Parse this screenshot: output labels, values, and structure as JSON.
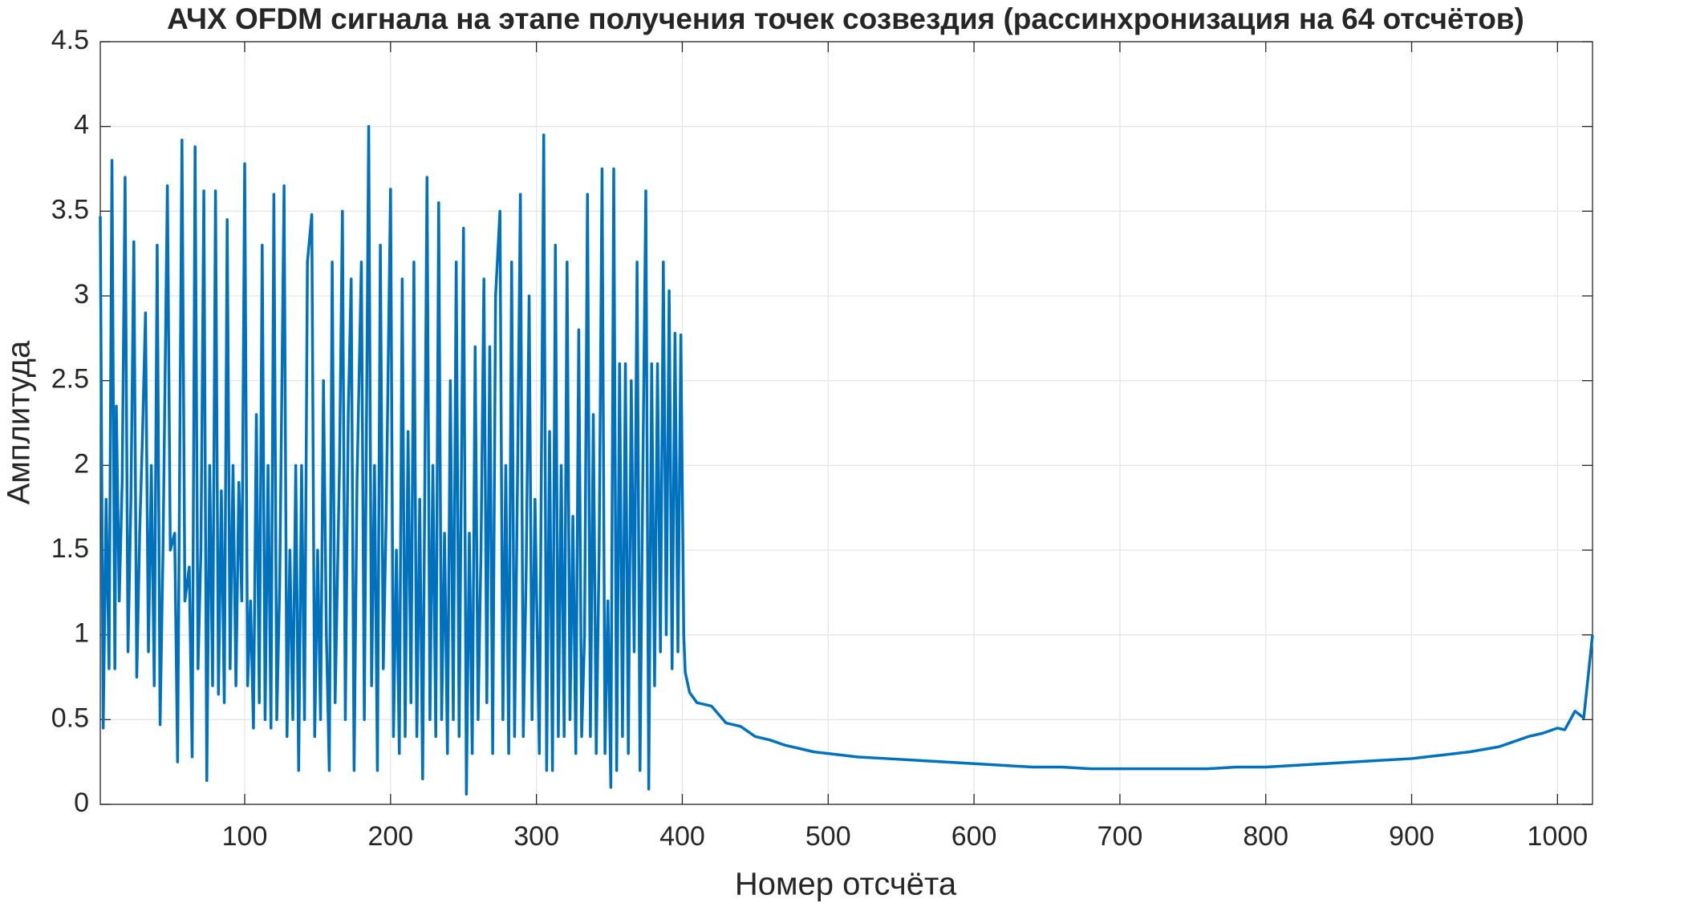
{
  "chart_data": {
    "type": "line",
    "title": "АЧХ OFDM сигнала на этапе получения точек созвездия (рассинхронизация на 64 отсчётов)",
    "xlabel": "Номер отсчёта",
    "ylabel": "Амплитуда",
    "xlim": [
      1,
      1024
    ],
    "ylim": [
      0,
      4.5
    ],
    "xticks": [
      100,
      200,
      300,
      400,
      500,
      600,
      700,
      800,
      900,
      1000
    ],
    "yticks": [
      0,
      0.5,
      1,
      1.5,
      2,
      2.5,
      3,
      3.5,
      4,
      4.5
    ],
    "grid": true,
    "series": [
      {
        "color": "#0072bd",
        "x": [
          1,
          3,
          5,
          7,
          9,
          11,
          12,
          14,
          16,
          18,
          20,
          22,
          24,
          26,
          28,
          30,
          32,
          34,
          36,
          38,
          40,
          42,
          44,
          47,
          49,
          52,
          54,
          57,
          59,
          62,
          64,
          66,
          68,
          70,
          72,
          74,
          76,
          78,
          80,
          82,
          84,
          86,
          88,
          90,
          92,
          94,
          96,
          98,
          100,
          102,
          104,
          106,
          108,
          110,
          112,
          114,
          116,
          118,
          120,
          122,
          124,
          127,
          129,
          131,
          133,
          135,
          137,
          139,
          141,
          143,
          146,
          148,
          150,
          152,
          154,
          156,
          158,
          160,
          162,
          165,
          167,
          169,
          171,
          173,
          175,
          177,
          180,
          182,
          185,
          187,
          189,
          191,
          193,
          195,
          197,
          200,
          202,
          204,
          206,
          208,
          210,
          212,
          214,
          216,
          218,
          220,
          222,
          225,
          227,
          229,
          231,
          233,
          235,
          237,
          239,
          241,
          243,
          245,
          247,
          250,
          252,
          254,
          256,
          258,
          260,
          262,
          264,
          266,
          268,
          270,
          272,
          275,
          277,
          279,
          281,
          283,
          285,
          287,
          289,
          291,
          293,
          295,
          297,
          299,
          302,
          305,
          307,
          309,
          311,
          313,
          315,
          317,
          319,
          321,
          323,
          325,
          327,
          329,
          331,
          333,
          335,
          337,
          339,
          341,
          343,
          345,
          347,
          349,
          351,
          353,
          355,
          357,
          359,
          361,
          363,
          365,
          367,
          369,
          371,
          373,
          375,
          377,
          379,
          381,
          383,
          385,
          387,
          389,
          391,
          393,
          395,
          397,
          399,
          401,
          402,
          405,
          410,
          420,
          430,
          440,
          450,
          460,
          470,
          480,
          490,
          500,
          520,
          540,
          560,
          580,
          600,
          620,
          640,
          660,
          680,
          700,
          720,
          740,
          760,
          780,
          800,
          820,
          840,
          860,
          880,
          900,
          920,
          940,
          960,
          970,
          980,
          990,
          1000,
          1005,
          1012,
          1018,
          1024
        ],
        "values": [
          3.47,
          0.45,
          1.8,
          0.8,
          3.8,
          0.8,
          2.35,
          1.2,
          1.9,
          3.7,
          0.9,
          1.8,
          3.32,
          0.75,
          1.6,
          2.2,
          2.9,
          0.9,
          2.0,
          0.7,
          3.3,
          0.47,
          1.5,
          3.65,
          1.5,
          1.6,
          0.25,
          3.92,
          1.2,
          1.4,
          0.28,
          3.88,
          0.8,
          1.5,
          3.62,
          0.14,
          2.0,
          0.7,
          3.62,
          0.65,
          1.85,
          0.6,
          3.45,
          0.8,
          2.0,
          0.7,
          1.9,
          1.2,
          3.78,
          0.7,
          1.2,
          0.45,
          2.3,
          0.6,
          3.3,
          0.5,
          2.0,
          0.45,
          3.6,
          0.5,
          1.3,
          3.65,
          0.4,
          1.5,
          0.5,
          2.0,
          0.2,
          2.0,
          0.5,
          3.2,
          3.48,
          0.4,
          1.5,
          0.5,
          2.5,
          1.0,
          0.2,
          3.2,
          0.6,
          2.0,
          3.5,
          0.5,
          2.3,
          3.1,
          0.2,
          1.9,
          3.2,
          0.5,
          4.0,
          0.7,
          2.0,
          0.2,
          3.3,
          0.8,
          1.7,
          3.63,
          0.4,
          1.5,
          0.3,
          3.1,
          0.4,
          2.2,
          0.6,
          3.2,
          0.4,
          1.8,
          0.15,
          3.7,
          0.5,
          2.0,
          0.4,
          3.55,
          0.5,
          1.6,
          0.3,
          2.5,
          0.5,
          3.2,
          0.4,
          3.4,
          0.06,
          1.6,
          0.3,
          2.7,
          0.5,
          1.5,
          3.1,
          0.6,
          2.7,
          0.3,
          3.0,
          3.5,
          0.5,
          2.0,
          0.3,
          3.2,
          0.4,
          1.9,
          3.6,
          0.4,
          1.4,
          3.0,
          0.5,
          1.8,
          0.3,
          3.95,
          0.2,
          2.2,
          0.2,
          3.3,
          0.4,
          2.0,
          0.4,
          3.2,
          0.5,
          1.7,
          0.3,
          2.8,
          0.4,
          1.0,
          3.6,
          0.4,
          2.3,
          0.3,
          1.5,
          3.75,
          0.3,
          1.2,
          0.1,
          3.75,
          0.2,
          2.6,
          0.4,
          2.6,
          0.3,
          2.5,
          0.9,
          3.2,
          0.2,
          2.0,
          3.62,
          0.09,
          2.6,
          0.7,
          2.6,
          0.9,
          3.2,
          1.0,
          3.03,
          0.8,
          2.78,
          0.9,
          2.77,
          1.0,
          0.78,
          0.66,
          0.6,
          0.58,
          0.48,
          0.46,
          0.4,
          0.38,
          0.35,
          0.33,
          0.31,
          0.3,
          0.28,
          0.27,
          0.26,
          0.25,
          0.24,
          0.23,
          0.22,
          0.22,
          0.21,
          0.21,
          0.21,
          0.21,
          0.21,
          0.22,
          0.22,
          0.23,
          0.24,
          0.25,
          0.26,
          0.27,
          0.29,
          0.31,
          0.34,
          0.37,
          0.4,
          0.42,
          0.45,
          0.44,
          0.55,
          0.51,
          1.0
        ]
      }
    ]
  }
}
